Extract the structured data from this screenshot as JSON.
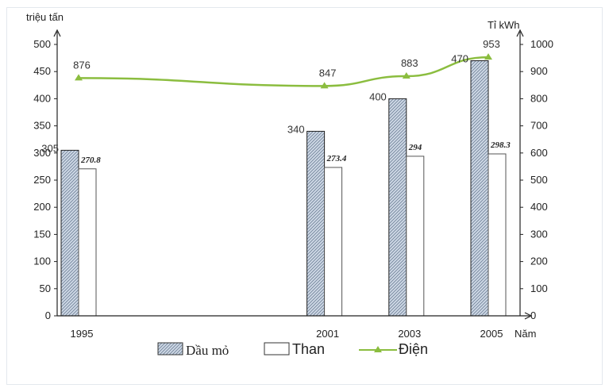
{
  "chart_data": {
    "type": "bar",
    "categories": [
      "1995",
      "2001",
      "2003",
      "2005"
    ],
    "x_unit": "Năm",
    "series": [
      {
        "name": "Dầu mỏ",
        "values": [
          305,
          340,
          400,
          470
        ],
        "labels": [
          "305",
          "340",
          "400",
          "470"
        ],
        "axis": "left",
        "kind": "bar",
        "pattern": "hatched",
        "color": "#cfd9e6"
      },
      {
        "name": "Than",
        "values": [
          270.8,
          273.4,
          294,
          298.3
        ],
        "labels": [
          "270.8",
          "273.4",
          "294",
          "298.3"
        ],
        "axis": "left",
        "kind": "bar",
        "color": "#ffffff"
      },
      {
        "name": "Điện",
        "values": [
          876,
          847,
          883,
          953
        ],
        "labels": [
          "876",
          "847",
          "883",
          "953"
        ],
        "axis": "right",
        "kind": "line",
        "color": "#8bbd3f"
      }
    ],
    "left_axis": {
      "label": "triệu tấn",
      "min": 0,
      "max": 500,
      "step": 50
    },
    "right_axis": {
      "label": "Tỉ kWh",
      "min": 0,
      "max": 1000,
      "step": 100
    },
    "legend": {
      "placement": "bottom-center"
    }
  }
}
